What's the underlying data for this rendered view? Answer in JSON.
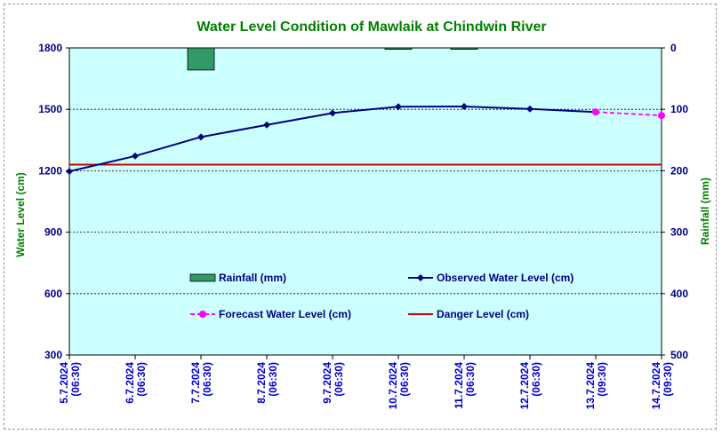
{
  "chart_data": {
    "type": "line",
    "title": "Water Level Condition of Mawlaik at Chindwin River",
    "ylabel": "Water Level (cm)",
    "y2label": "Rainfall (mm)",
    "ylim": [
      300,
      1800
    ],
    "y2lim": [
      500,
      0
    ],
    "y_ticks": [
      "1800",
      "1500",
      "1200",
      "900",
      "600",
      "300"
    ],
    "y2_ticks": [
      "0",
      "100",
      "200",
      "300",
      "400",
      "500"
    ],
    "categories": [
      [
        "5.7.2024",
        "(06:30)"
      ],
      [
        "6.7.2024",
        "(06:30)"
      ],
      [
        "7.7.2024",
        "(06:30)"
      ],
      [
        "8.7.2024",
        "(06:30)"
      ],
      [
        "9.7.2024",
        "(06:30)"
      ],
      [
        "10.7.2024",
        "(06:30)"
      ],
      [
        "11.7.2024",
        "(06:30)"
      ],
      [
        "12.7.2024",
        "(06:30)"
      ],
      [
        "13.7.2024",
        "(09:30)"
      ],
      [
        "14.7.2024",
        "(09:30)"
      ]
    ],
    "series": [
      {
        "name": "Rainfall (mm)",
        "type": "bar",
        "axis": "right",
        "color": "#339966",
        "values": [
          0,
          0,
          36,
          0,
          0,
          2,
          2,
          0,
          null,
          null
        ]
      },
      {
        "name": "Observed Water Level (cm)",
        "type": "line",
        "color": "#000080",
        "marker": "diamond",
        "values": [
          1197,
          1272,
          1365,
          1424,
          1482,
          1513,
          1514,
          1502,
          1487,
          null
        ]
      },
      {
        "name": "Forecast Water Level (cm)",
        "type": "line",
        "color": "#ff00ff",
        "dash": true,
        "marker": "circle",
        "values": [
          null,
          null,
          null,
          null,
          null,
          null,
          null,
          null,
          1487,
          1470
        ]
      },
      {
        "name": "Danger Level (cm)",
        "type": "hline",
        "color": "#cc0000",
        "value": 1230
      }
    ],
    "plot_background": "#ccffff",
    "grid": true,
    "legend_position": "inside-bottom"
  }
}
